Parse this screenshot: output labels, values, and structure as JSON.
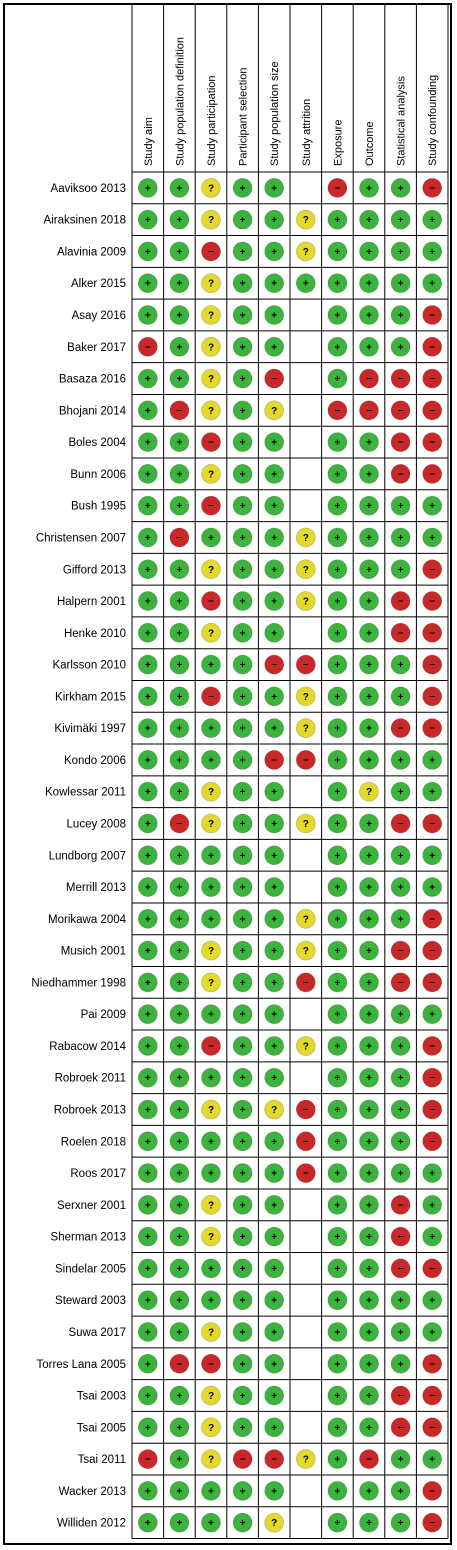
{
  "chart_data": {
    "type": "table",
    "columns": [
      "Study aim",
      "Study population definition",
      "Study participation",
      "Participant selection",
      "Study population size",
      "Study attrition",
      "Exposure",
      "Outcome",
      "Statistical analysis",
      "Study confounding"
    ],
    "legend": {
      "+": "#3cb33c",
      "?": "#e3d92c",
      "-": "#c82828"
    },
    "rows": [
      {
        "study": "Aaviksoo 2013",
        "ratings": [
          "+",
          "+",
          "?",
          "+",
          "+",
          "",
          "-",
          "+",
          "+",
          "-"
        ]
      },
      {
        "study": "Airaksinen 2018",
        "ratings": [
          "+",
          "+",
          "?",
          "+",
          "+",
          "?",
          "+",
          "+",
          "+",
          "+"
        ]
      },
      {
        "study": "Alavinia 2009",
        "ratings": [
          "+",
          "+",
          "-",
          "+",
          "+",
          "?",
          "+",
          "+",
          "+",
          "+"
        ]
      },
      {
        "study": "Alker 2015",
        "ratings": [
          "+",
          "+",
          "?",
          "+",
          "+",
          "+",
          "+",
          "+",
          "+",
          "+"
        ]
      },
      {
        "study": "Asay 2016",
        "ratings": [
          "+",
          "+",
          "?",
          "+",
          "+",
          "",
          "+",
          "+",
          "+",
          "-"
        ]
      },
      {
        "study": "Baker 2017",
        "ratings": [
          "-",
          "+",
          "?",
          "+",
          "+",
          "",
          "+",
          "+",
          "+",
          "-"
        ]
      },
      {
        "study": "Basaza 2016",
        "ratings": [
          "+",
          "+",
          "?",
          "+",
          "-",
          "",
          "+",
          "-",
          "-",
          "-"
        ]
      },
      {
        "study": "Bhojani 2014",
        "ratings": [
          "+",
          "-",
          "?",
          "+",
          "?",
          "",
          "-",
          "-",
          "-",
          "-"
        ]
      },
      {
        "study": "Boles 2004",
        "ratings": [
          "+",
          "+",
          "-",
          "+",
          "+",
          "",
          "+",
          "+",
          "-",
          "-"
        ]
      },
      {
        "study": "Bunn 2006",
        "ratings": [
          "+",
          "+",
          "?",
          "+",
          "+",
          "",
          "+",
          "+",
          "-",
          "-"
        ]
      },
      {
        "study": "Bush 1995",
        "ratings": [
          "+",
          "+",
          "-",
          "+",
          "+",
          "",
          "+",
          "+",
          "+",
          "+"
        ]
      },
      {
        "study": "Christensen 2007",
        "ratings": [
          "+",
          "-",
          "+",
          "+",
          "+",
          "?",
          "+",
          "+",
          "+",
          "+"
        ]
      },
      {
        "study": "Gifford 2013",
        "ratings": [
          "+",
          "+",
          "?",
          "+",
          "+",
          "?",
          "+",
          "+",
          "+",
          "-"
        ]
      },
      {
        "study": "Halpern 2001",
        "ratings": [
          "+",
          "+",
          "-",
          "+",
          "+",
          "?",
          "+",
          "+",
          "-",
          "-"
        ]
      },
      {
        "study": "Henke 2010",
        "ratings": [
          "+",
          "+",
          "?",
          "+",
          "+",
          "",
          "+",
          "+",
          "-",
          "-"
        ]
      },
      {
        "study": "Karlsson 2010",
        "ratings": [
          "+",
          "+",
          "+",
          "+",
          "-",
          "-",
          "+",
          "+",
          "+",
          "-"
        ]
      },
      {
        "study": "Kirkham 2015",
        "ratings": [
          "+",
          "+",
          "-",
          "+",
          "+",
          "?",
          "+",
          "+",
          "+",
          "-"
        ]
      },
      {
        "study": "Kivimäki 1997",
        "ratings": [
          "+",
          "+",
          "+",
          "+",
          "+",
          "?",
          "+",
          "+",
          "-",
          "-"
        ]
      },
      {
        "study": "Kondo 2006",
        "ratings": [
          "+",
          "+",
          "+",
          "+",
          "-",
          "-",
          "+",
          "+",
          "+",
          "+"
        ]
      },
      {
        "study": "Kowlessar 2011",
        "ratings": [
          "+",
          "+",
          "?",
          "+",
          "+",
          "",
          "+",
          "?",
          "+",
          "+"
        ]
      },
      {
        "study": "Lucey 2008",
        "ratings": [
          "+",
          "-",
          "?",
          "+",
          "+",
          "?",
          "+",
          "+",
          "-",
          "-"
        ]
      },
      {
        "study": "Lundborg 2007",
        "ratings": [
          "+",
          "+",
          "+",
          "+",
          "+",
          "",
          "+",
          "+",
          "+",
          "+"
        ]
      },
      {
        "study": "Merrill 2013",
        "ratings": [
          "+",
          "+",
          "+",
          "+",
          "+",
          "",
          "+",
          "+",
          "+",
          "+"
        ]
      },
      {
        "study": "Morikawa 2004",
        "ratings": [
          "+",
          "+",
          "+",
          "+",
          "+",
          "?",
          "+",
          "+",
          "+",
          "-"
        ]
      },
      {
        "study": "Musich 2001",
        "ratings": [
          "+",
          "+",
          "?",
          "+",
          "+",
          "?",
          "+",
          "+",
          "-",
          "-"
        ]
      },
      {
        "study": "Niedhammer 1998",
        "ratings": [
          "+",
          "+",
          "?",
          "+",
          "+",
          "-",
          "+",
          "+",
          "-",
          "-"
        ]
      },
      {
        "study": "Pai 2009",
        "ratings": [
          "+",
          "+",
          "+",
          "+",
          "+",
          "",
          "+",
          "+",
          "+",
          "+"
        ]
      },
      {
        "study": "Rabacow 2014",
        "ratings": [
          "+",
          "+",
          "-",
          "+",
          "+",
          "?",
          "+",
          "+",
          "+",
          "-"
        ]
      },
      {
        "study": "Robroek 2011",
        "ratings": [
          "+",
          "+",
          "+",
          "+",
          "+",
          "",
          "+",
          "+",
          "+",
          "-"
        ]
      },
      {
        "study": "Robroek 2013",
        "ratings": [
          "+",
          "+",
          "?",
          "+",
          "?",
          "-",
          "+",
          "+",
          "+",
          "-"
        ]
      },
      {
        "study": "Roelen 2018",
        "ratings": [
          "+",
          "+",
          "+",
          "+",
          "+",
          "-",
          "+",
          "+",
          "+",
          "-"
        ]
      },
      {
        "study": "Roos 2017",
        "ratings": [
          "+",
          "+",
          "+",
          "+",
          "+",
          "-",
          "+",
          "+",
          "+",
          "+"
        ]
      },
      {
        "study": "Serxner 2001",
        "ratings": [
          "+",
          "+",
          "?",
          "+",
          "+",
          "",
          "+",
          "+",
          "-",
          "+"
        ]
      },
      {
        "study": "Sherman 2013",
        "ratings": [
          "+",
          "+",
          "?",
          "+",
          "+",
          "",
          "+",
          "+",
          "-",
          "+"
        ]
      },
      {
        "study": "Sindelar 2005",
        "ratings": [
          "+",
          "+",
          "+",
          "+",
          "+",
          "",
          "+",
          "+",
          "-",
          "-"
        ]
      },
      {
        "study": "Steward 2003",
        "ratings": [
          "+",
          "+",
          "+",
          "+",
          "+",
          "",
          "+",
          "+",
          "+",
          "+"
        ]
      },
      {
        "study": "Suwa 2017",
        "ratings": [
          "+",
          "+",
          "?",
          "+",
          "+",
          "",
          "+",
          "+",
          "+",
          "+"
        ]
      },
      {
        "study": "Torres Lana 2005",
        "ratings": [
          "+",
          "-",
          "-",
          "+",
          "+",
          "",
          "+",
          "+",
          "+",
          "-"
        ]
      },
      {
        "study": "Tsai 2003",
        "ratings": [
          "+",
          "+",
          "?",
          "+",
          "+",
          "",
          "+",
          "+",
          "-",
          "-"
        ]
      },
      {
        "study": "Tsai 2005",
        "ratings": [
          "+",
          "+",
          "?",
          "+",
          "+",
          "",
          "+",
          "+",
          "-",
          "-"
        ]
      },
      {
        "study": "Tsai 2011",
        "ratings": [
          "-",
          "+",
          "?",
          "-",
          "-",
          "?",
          "+",
          "-",
          "+",
          "+"
        ]
      },
      {
        "study": "Wacker 2013",
        "ratings": [
          "+",
          "+",
          "+",
          "+",
          "+",
          "",
          "+",
          "+",
          "+",
          "-"
        ]
      },
      {
        "study": "Williden 2012",
        "ratings": [
          "+",
          "+",
          "+",
          "+",
          "?",
          "",
          "+",
          "+",
          "+",
          "-"
        ]
      }
    ]
  }
}
